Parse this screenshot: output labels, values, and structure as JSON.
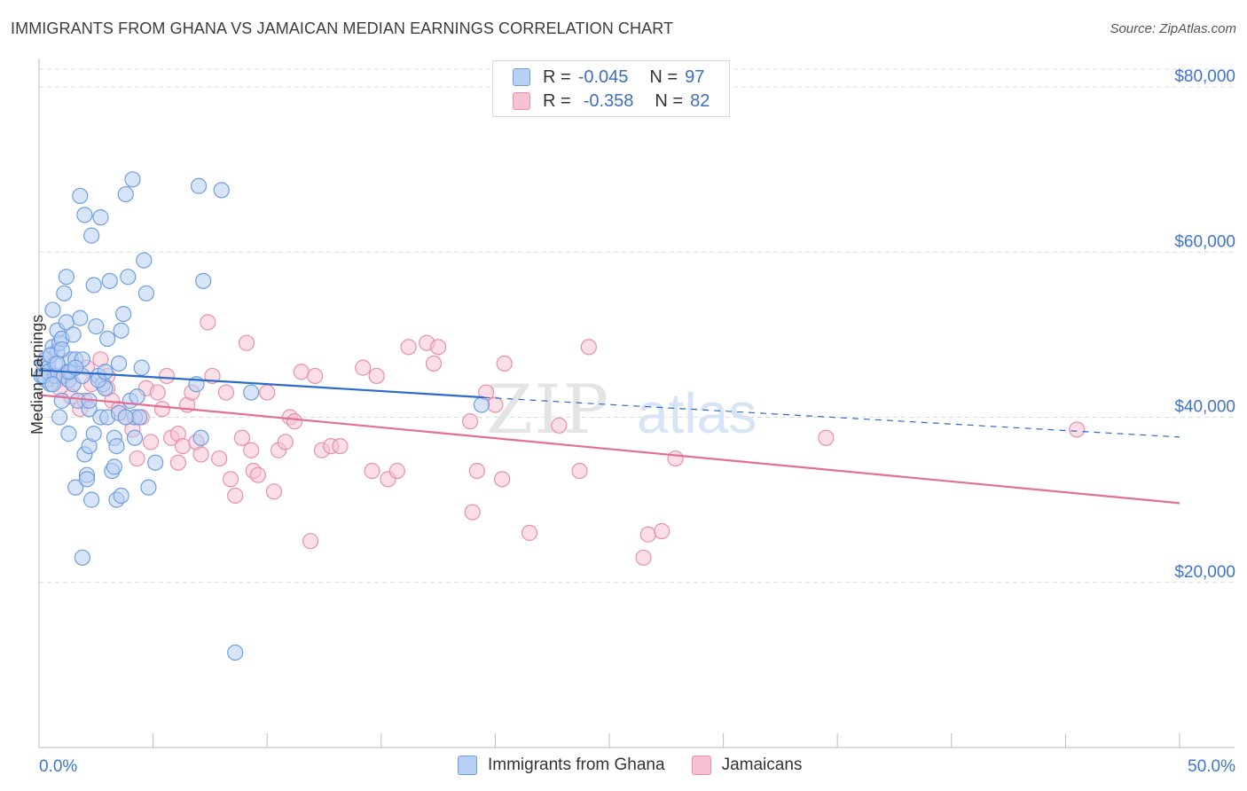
{
  "title": "IMMIGRANTS FROM GHANA VS JAMAICAN MEDIAN EARNINGS CORRELATION CHART",
  "source": "Source: ZipAtlas.com",
  "watermark": {
    "zip": "ZIP",
    "atlas": "atlas"
  },
  "legend": {
    "rows": [
      {
        "r_label": "R =",
        "r_value": "-0.045",
        "n_label": "N =",
        "n_value": "97"
      },
      {
        "r_label": "R =",
        "r_value": "-0.358",
        "n_label": "N =",
        "n_value": "82"
      }
    ]
  },
  "bottom_legend": [
    "Immigrants from Ghana",
    "Jamaicans"
  ],
  "colors": {
    "blue_fill": "#b8d0f4",
    "blue_stroke": "#6f9ee0",
    "blue_line": "#2b6cc9",
    "pink_fill": "#f7c3d3",
    "pink_stroke": "#e890ac",
    "pink_line": "#e36f96",
    "axis_text": "#3f74cc",
    "grid": "#dcdcdc"
  },
  "chart_data": {
    "type": "scatter",
    "title": "IMMIGRANTS FROM GHANA VS JAMAICAN MEDIAN EARNINGS CORRELATION CHART",
    "xlabel": "",
    "ylabel": "Median Earnings",
    "xlim": [
      0,
      50
    ],
    "ylim": [
      0,
      80000
    ],
    "x_tick_labels": [
      "0.0%",
      "50.0%"
    ],
    "y_ticks": [
      20000,
      40000,
      60000,
      80000
    ],
    "y_tick_labels": [
      "$20,000",
      "$40,000",
      "$60,000",
      "$80,000"
    ],
    "grid": true,
    "legend_position": "top-center",
    "series": [
      {
        "name": "Immigrants from Ghana",
        "trend": {
          "x0": 0,
          "y0": 45700,
          "x1": 19.5,
          "y1": 42400,
          "dash_to_x": 50,
          "dash_to_y": 37600
        },
        "points": [
          [
            0.1,
            45000
          ],
          [
            0.2,
            46500
          ],
          [
            0.3,
            44500
          ],
          [
            0.3,
            47000
          ],
          [
            0.4,
            46000
          ],
          [
            0.4,
            45500
          ],
          [
            0.5,
            47500
          ],
          [
            0.5,
            44000
          ],
          [
            0.6,
            48500
          ],
          [
            0.6,
            53000
          ],
          [
            0.7,
            46500
          ],
          [
            0.7,
            45000
          ],
          [
            0.8,
            48000
          ],
          [
            0.8,
            50500
          ],
          [
            0.9,
            49000
          ],
          [
            0.9,
            40000
          ],
          [
            1.0,
            42000
          ],
          [
            1.0,
            49500
          ],
          [
            1.1,
            45000
          ],
          [
            1.1,
            55000
          ],
          [
            1.2,
            51500
          ],
          [
            1.2,
            57000
          ],
          [
            1.3,
            38000
          ],
          [
            1.3,
            44500
          ],
          [
            1.4,
            47000
          ],
          [
            1.4,
            45500
          ],
          [
            1.5,
            44000
          ],
          [
            1.5,
            50000
          ],
          [
            1.6,
            47000
          ],
          [
            1.6,
            31500
          ],
          [
            1.7,
            42000
          ],
          [
            1.8,
            66800
          ],
          [
            1.8,
            52000
          ],
          [
            1.9,
            47000
          ],
          [
            1.9,
            45000
          ],
          [
            2.0,
            64500
          ],
          [
            2.0,
            35500
          ],
          [
            2.1,
            33000
          ],
          [
            2.1,
            32500
          ],
          [
            2.2,
            41000
          ],
          [
            2.2,
            36500
          ],
          [
            2.3,
            30000
          ],
          [
            2.3,
            62000
          ],
          [
            2.4,
            56000
          ],
          [
            2.5,
            51000
          ],
          [
            2.6,
            45000
          ],
          [
            2.7,
            40000
          ],
          [
            2.7,
            64200
          ],
          [
            2.8,
            44000
          ],
          [
            2.9,
            43500
          ],
          [
            3.0,
            49500
          ],
          [
            3.0,
            40000
          ],
          [
            3.1,
            56500
          ],
          [
            3.2,
            33500
          ],
          [
            3.3,
            37500
          ],
          [
            3.3,
            34000
          ],
          [
            3.4,
            30000
          ],
          [
            3.5,
            40500
          ],
          [
            3.5,
            46500
          ],
          [
            3.6,
            50500
          ],
          [
            3.6,
            30500
          ],
          [
            3.7,
            52500
          ],
          [
            3.8,
            67000
          ],
          [
            3.9,
            57000
          ],
          [
            4.0,
            42000
          ],
          [
            4.1,
            68800
          ],
          [
            4.2,
            40000
          ],
          [
            4.3,
            42500
          ],
          [
            4.4,
            40000
          ],
          [
            4.5,
            46000
          ],
          [
            4.6,
            59000
          ],
          [
            4.7,
            55000
          ],
          [
            4.8,
            31500
          ],
          [
            5.1,
            34500
          ],
          [
            7.0,
            68000
          ],
          [
            8.0,
            67500
          ],
          [
            7.2,
            56500
          ],
          [
            7.1,
            37500
          ],
          [
            8.6,
            11500
          ],
          [
            9.3,
            43000
          ],
          [
            19.4,
            41500
          ],
          [
            1.9,
            23000
          ],
          [
            0.5,
            47500
          ],
          [
            0.8,
            46500
          ],
          [
            1.3,
            45500
          ],
          [
            2.6,
            44500
          ],
          [
            3.8,
            40000
          ],
          [
            4.2,
            37500
          ],
          [
            6.9,
            44000
          ],
          [
            2.4,
            38000
          ],
          [
            0.2,
            45000
          ],
          [
            0.6,
            44000
          ],
          [
            1.6,
            46000
          ],
          [
            2.2,
            42000
          ],
          [
            2.9,
            45500
          ],
          [
            3.4,
            36500
          ],
          [
            1.0,
            48200
          ]
        ]
      },
      {
        "name": "Jamaicans",
        "trend": {
          "x0": 0,
          "y0": 42700,
          "x1": 50,
          "y1": 29600
        },
        "points": [
          [
            0.4,
            46500
          ],
          [
            0.6,
            45000
          ],
          [
            0.8,
            44500
          ],
          [
            1.2,
            45500
          ],
          [
            1.5,
            44000
          ],
          [
            1.8,
            41000
          ],
          [
            2.1,
            46000
          ],
          [
            2.3,
            44000
          ],
          [
            2.7,
            47000
          ],
          [
            3.0,
            43500
          ],
          [
            3.2,
            42000
          ],
          [
            3.5,
            41000
          ],
          [
            3.8,
            40000
          ],
          [
            4.1,
            38500
          ],
          [
            4.3,
            35000
          ],
          [
            4.5,
            40000
          ],
          [
            4.7,
            43500
          ],
          [
            4.9,
            37000
          ],
          [
            5.2,
            43000
          ],
          [
            5.4,
            41000
          ],
          [
            5.6,
            45000
          ],
          [
            5.8,
            37500
          ],
          [
            6.1,
            38000
          ],
          [
            6.3,
            36500
          ],
          [
            6.5,
            41500
          ],
          [
            6.7,
            43000
          ],
          [
            6.9,
            37000
          ],
          [
            7.1,
            35500
          ],
          [
            7.4,
            51500
          ],
          [
            7.6,
            45000
          ],
          [
            7.9,
            35000
          ],
          [
            8.2,
            43000
          ],
          [
            8.4,
            32500
          ],
          [
            8.6,
            30500
          ],
          [
            8.9,
            37500
          ],
          [
            9.1,
            49000
          ],
          [
            9.4,
            33500
          ],
          [
            9.6,
            33000
          ],
          [
            10.0,
            43000
          ],
          [
            10.3,
            31000
          ],
          [
            10.5,
            36000
          ],
          [
            10.8,
            37000
          ],
          [
            11.0,
            40000
          ],
          [
            11.2,
            39500
          ],
          [
            11.5,
            45500
          ],
          [
            11.9,
            25000
          ],
          [
            12.1,
            45000
          ],
          [
            12.4,
            36000
          ],
          [
            12.8,
            36500
          ],
          [
            13.2,
            36500
          ],
          [
            14.2,
            46000
          ],
          [
            14.6,
            33500
          ],
          [
            14.8,
            45000
          ],
          [
            15.3,
            32500
          ],
          [
            15.7,
            33500
          ],
          [
            16.2,
            48500
          ],
          [
            17.0,
            49000
          ],
          [
            17.3,
            46500
          ],
          [
            17.5,
            48500
          ],
          [
            18.9,
            39500
          ],
          [
            19.0,
            28500
          ],
          [
            19.2,
            33500
          ],
          [
            19.6,
            43000
          ],
          [
            20.0,
            41500
          ],
          [
            20.3,
            32500
          ],
          [
            20.4,
            46500
          ],
          [
            21.5,
            26000
          ],
          [
            22.8,
            39000
          ],
          [
            23.7,
            33500
          ],
          [
            24.1,
            48500
          ],
          [
            26.5,
            23000
          ],
          [
            26.7,
            25800
          ],
          [
            27.3,
            26200
          ],
          [
            27.9,
            35000
          ],
          [
            34.5,
            37500
          ],
          [
            45.5,
            38500
          ],
          [
            9.3,
            36000
          ],
          [
            6.1,
            34500
          ],
          [
            3.0,
            45000
          ],
          [
            0.9,
            43500
          ],
          [
            1.4,
            42500
          ],
          [
            2.0,
            42000
          ]
        ]
      }
    ]
  }
}
